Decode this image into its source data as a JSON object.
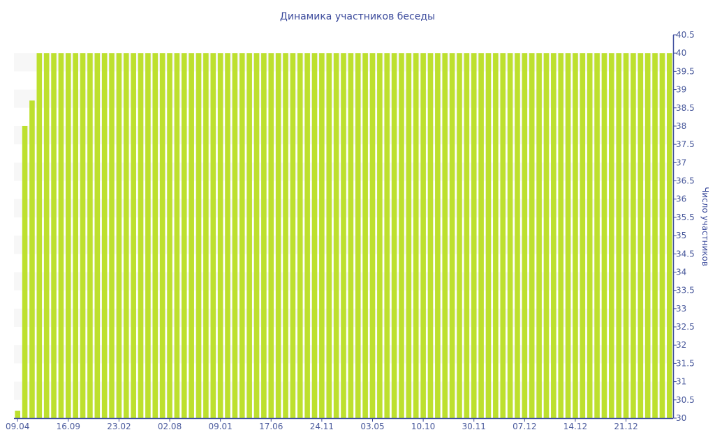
{
  "chart_data": {
    "type": "bar",
    "title": "Динамика участников беседы",
    "xlabel": "",
    "ylabel": "Число участников",
    "y_axis_side": "right",
    "ylim": [
      30,
      40.5
    ],
    "yticks": [
      30,
      30.5,
      31,
      31.5,
      32,
      32.5,
      33,
      33.5,
      34,
      34.5,
      35,
      35.5,
      36,
      36.5,
      37,
      37.5,
      38,
      38.5,
      39,
      39.5,
      40,
      40.5
    ],
    "xtick_labels": [
      "09.04",
      "16.09",
      "23.02",
      "02.08",
      "09.01",
      "17.06",
      "24.11",
      "03.05",
      "10.10",
      "30.11",
      "07.12",
      "14.12",
      "21.12"
    ],
    "xtick_every": 7,
    "grid": "alternating horizontal bands",
    "values": [
      30.2,
      38,
      38.7,
      40,
      40,
      40,
      40,
      40,
      40,
      40,
      40,
      40,
      40,
      40,
      40,
      40,
      40,
      40,
      40,
      40,
      40,
      40,
      40,
      40,
      40,
      40,
      40,
      40,
      40,
      40,
      40,
      40,
      40,
      40,
      40,
      40,
      40,
      40,
      40,
      40,
      40,
      40,
      40,
      40,
      40,
      40,
      40,
      40,
      40,
      40,
      40,
      40,
      40,
      40,
      40,
      40,
      40,
      40,
      40,
      40,
      40,
      40,
      40,
      40,
      40,
      40,
      40,
      40,
      40,
      40,
      40,
      40,
      40,
      40,
      40,
      40,
      40,
      40,
      40,
      40,
      40,
      40,
      40,
      40,
      40,
      40,
      40,
      40,
      40,
      40,
      40
    ],
    "colors": {
      "bar": "#bde02e",
      "axis": "#3c4b9c",
      "band": "#f7f7f7"
    }
  }
}
